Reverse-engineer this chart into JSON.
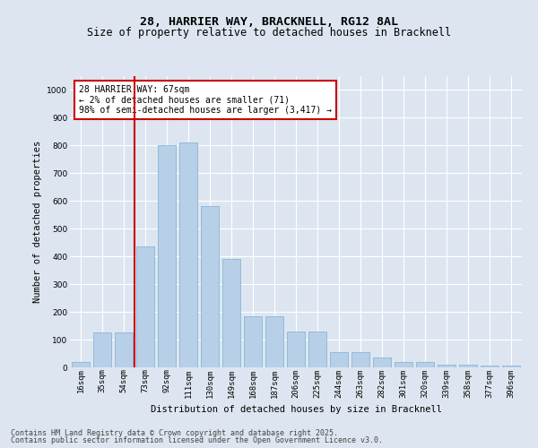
{
  "title_line1": "28, HARRIER WAY, BRACKNELL, RG12 8AL",
  "title_line2": "Size of property relative to detached houses in Bracknell",
  "xlabel": "Distribution of detached houses by size in Bracknell",
  "ylabel": "Number of detached properties",
  "categories": [
    "16sqm",
    "35sqm",
    "54sqm",
    "73sqm",
    "92sqm",
    "111sqm",
    "130sqm",
    "149sqm",
    "168sqm",
    "187sqm",
    "206sqm",
    "225sqm",
    "244sqm",
    "263sqm",
    "282sqm",
    "301sqm",
    "320sqm",
    "339sqm",
    "358sqm",
    "377sqm",
    "396sqm"
  ],
  "values": [
    20,
    125,
    125,
    435,
    800,
    810,
    580,
    390,
    185,
    185,
    130,
    130,
    55,
    55,
    35,
    20,
    20,
    10,
    10,
    5,
    5
  ],
  "bar_color": "#b8cfe8",
  "bar_edge_color": "#7aaed6",
  "redline_x": 2.5,
  "annotation_title": "28 HARRIER WAY: 67sqm",
  "annotation_line2": "← 2% of detached houses are smaller (71)",
  "annotation_line3": "98% of semi-detached houses are larger (3,417) →",
  "annotation_box_color": "#ffffff",
  "annotation_box_edge": "#cc0000",
  "redline_color": "#cc0000",
  "ylim": [
    0,
    1050
  ],
  "yticks": [
    0,
    100,
    200,
    300,
    400,
    500,
    600,
    700,
    800,
    900,
    1000
  ],
  "background_color": "#dde6f0",
  "grid_color": "#ffffff",
  "footnote1": "Contains HM Land Registry data © Crown copyright and database right 2025.",
  "footnote2": "Contains public sector information licensed under the Open Government Licence v3.0.",
  "title_fontsize": 9.5,
  "subtitle_fontsize": 8.5,
  "axis_label_fontsize": 7.5,
  "tick_fontsize": 6.5,
  "annotation_fontsize": 7,
  "footnote_fontsize": 6
}
